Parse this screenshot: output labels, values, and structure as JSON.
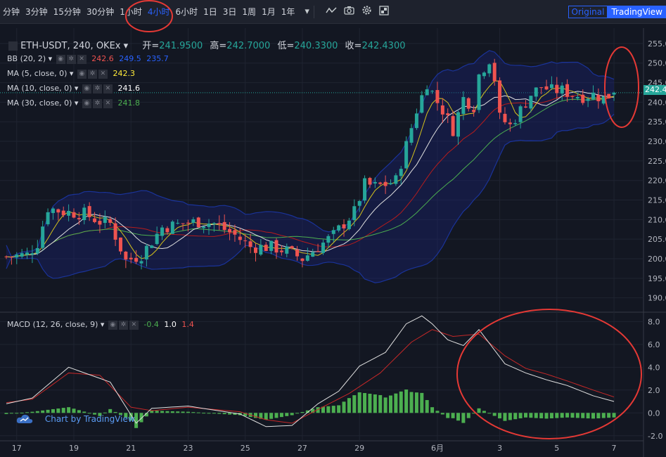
{
  "toolbar": {
    "timeframes": [
      "分钟",
      "3分钟",
      "15分钟",
      "30分钟",
      "1小时",
      "4小时",
      "6小时",
      "1日",
      "3日",
      "1周",
      "1月",
      "1年"
    ],
    "active_timeframe": "4小时",
    "icons": [
      "chevron-down-icon",
      "line-chart-icon",
      "camera-icon",
      "gear-icon",
      "fullscreen-icon"
    ],
    "switch_original": "Original",
    "switch_tradingview": "TradingView"
  },
  "header": {
    "symbol": "ETH-USDT, 240, OKEx",
    "open_label": "开=",
    "open_value": "241.9500",
    "high_label": "高=",
    "high_value": "242.7000",
    "low_label": "低=",
    "low_value": "240.3300",
    "close_label": "收=",
    "close_value": "242.4300"
  },
  "indicators": [
    {
      "label": "BB (20, 2)",
      "values": [
        "242.6",
        "249.5",
        "235.7"
      ],
      "colors": [
        "#ef5350",
        "#2962ff",
        "#2962ff"
      ]
    },
    {
      "label": "MA (5, close, 0)",
      "values": [
        "242.3"
      ],
      "colors": [
        "#ffeb3b"
      ]
    },
    {
      "label": "MA (10, close, 0)",
      "values": [
        "241.6"
      ],
      "colors": [
        "#ffffff"
      ]
    },
    {
      "label": "MA (30, close, 0)",
      "values": [
        "241.8"
      ],
      "colors": [
        "#4caf50"
      ]
    }
  ],
  "macd": {
    "label": "MACD (12, 26, close, 9)",
    "values": [
      "-0.4",
      "1.0",
      "1.4"
    ],
    "colors": [
      "#4caf50",
      "#ffffff",
      "#ef5350"
    ]
  },
  "watermark": "Chart by TradingView",
  "price_tag": "242.4",
  "colors": {
    "up": "#26a69a",
    "down": "#ef5350",
    "bb_band": "#1a237e",
    "macd_hist": "#4caf50",
    "annotation": "#e53935"
  },
  "chart_data": {
    "type": "candlestick",
    "symbol": "ETH-USDT",
    "x_ticks": [
      "17",
      "19",
      "21",
      "23",
      "25",
      "27",
      "29",
      "6月",
      "3",
      "5",
      "7"
    ],
    "price_axis": {
      "ticks": [
        255.0,
        250.0,
        245.0,
        240.0,
        235.0,
        230.0,
        225.0,
        220.0,
        215.0,
        210.0,
        205.0,
        200.0,
        195.0,
        190.0
      ],
      "ylim": [
        188.5,
        257.5
      ]
    },
    "macd_axis": {
      "ticks": [
        8.0,
        6.0,
        4.0,
        2.0,
        0.0,
        -2.0
      ],
      "ylim": [
        -3.0,
        8.7
      ]
    },
    "price_path": [
      [
        0,
        200.5
      ],
      [
        4,
        201
      ],
      [
        6,
        204
      ],
      [
        8,
        213
      ],
      [
        11,
        212
      ],
      [
        15,
        211.5
      ],
      [
        18,
        209.5
      ],
      [
        20,
        209
      ],
      [
        23,
        199.5
      ],
      [
        26,
        201
      ],
      [
        30,
        208
      ],
      [
        34,
        209
      ],
      [
        37,
        209.5
      ],
      [
        40,
        209
      ],
      [
        44,
        206
      ],
      [
        47,
        203
      ],
      [
        51,
        203
      ],
      [
        54,
        202
      ],
      [
        57,
        200
      ],
      [
        60,
        203
      ],
      [
        63,
        206
      ],
      [
        65,
        209
      ],
      [
        67,
        212
      ],
      [
        69,
        219
      ],
      [
        71,
        218.5
      ],
      [
        73,
        219
      ],
      [
        75,
        220
      ],
      [
        77,
        229
      ],
      [
        79,
        238
      ],
      [
        81,
        245
      ],
      [
        83,
        240
      ],
      [
        84,
        238
      ],
      [
        86,
        233
      ],
      [
        88,
        241
      ],
      [
        90,
        239
      ],
      [
        91,
        247
      ],
      [
        92,
        249
      ],
      [
        93,
        251
      ],
      [
        94,
        246
      ],
      [
        95,
        236
      ],
      [
        97,
        234
      ],
      [
        99,
        238
      ],
      [
        101,
        242
      ],
      [
        103,
        244
      ],
      [
        105,
        243
      ],
      [
        107,
        243
      ],
      [
        109,
        242
      ],
      [
        111,
        241.5
      ],
      [
        113,
        242
      ],
      [
        115,
        241
      ],
      [
        117,
        242.4
      ]
    ],
    "macd_line_path": [
      [
        0,
        0.8
      ],
      [
        5,
        1.3
      ],
      [
        12,
        4.0
      ],
      [
        20,
        2.7
      ],
      [
        25,
        -0.9
      ],
      [
        28,
        0.4
      ],
      [
        35,
        0.6
      ],
      [
        45,
        -0.1
      ],
      [
        50,
        -1.2
      ],
      [
        55,
        -1.1
      ],
      [
        60,
        0.8
      ],
      [
        64,
        1.9
      ],
      [
        68,
        4.1
      ],
      [
        73,
        5.3
      ],
      [
        77,
        7.8
      ],
      [
        80,
        8.5
      ],
      [
        82,
        7.8
      ],
      [
        85,
        6.4
      ],
      [
        88,
        5.9
      ],
      [
        91,
        7.3
      ],
      [
        96,
        4.3
      ],
      [
        100,
        3.5
      ],
      [
        104,
        2.9
      ],
      [
        108,
        2.4
      ],
      [
        113,
        1.5
      ],
      [
        117,
        1.0
      ]
    ],
    "signal_line_path": [
      [
        0,
        0.9
      ],
      [
        5,
        1.2
      ],
      [
        12,
        3.5
      ],
      [
        18,
        3.3
      ],
      [
        24,
        0.5
      ],
      [
        28,
        0.2
      ],
      [
        35,
        0.5
      ],
      [
        45,
        0.1
      ],
      [
        50,
        -0.6
      ],
      [
        55,
        -0.9
      ],
      [
        60,
        0.3
      ],
      [
        66,
        1.7
      ],
      [
        72,
        3.5
      ],
      [
        78,
        6.2
      ],
      [
        82,
        7.3
      ],
      [
        86,
        6.7
      ],
      [
        91,
        6.9
      ],
      [
        96,
        5.0
      ],
      [
        100,
        3.9
      ],
      [
        104,
        3.4
      ],
      [
        108,
        2.8
      ],
      [
        113,
        2.0
      ],
      [
        117,
        1.4
      ]
    ],
    "series": [
      {
        "name": "BB (20, 2)",
        "value": 242.6
      },
      {
        "name": "MA (5, close, 0)",
        "value": 242.3
      },
      {
        "name": "MA (10, close, 0)",
        "value": 241.6
      },
      {
        "name": "MA (30, close, 0)",
        "value": 241.8
      },
      {
        "name": "MACD (12, 26, close, 9)",
        "values": [
          -0.4,
          1.0,
          1.4
        ]
      }
    ]
  }
}
